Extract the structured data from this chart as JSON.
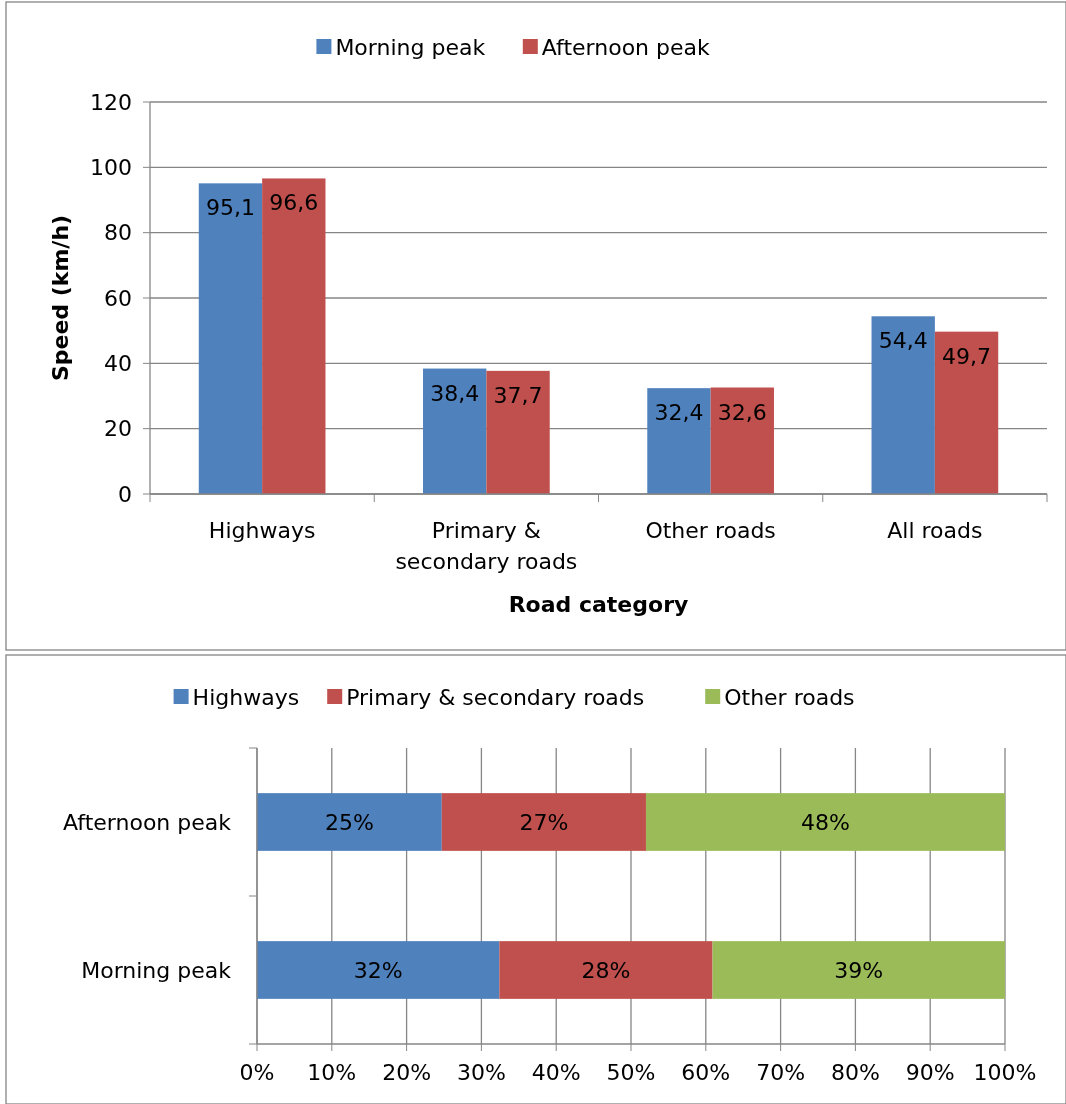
{
  "chart_data": [
    {
      "type": "bar",
      "categories": [
        "Highways",
        "Primary & secondary roads",
        "Other roads",
        "All roads"
      ],
      "series": [
        {
          "name": "Morning peak",
          "color": "#4f81bd",
          "values": [
            95.1,
            38.4,
            32.4,
            54.4
          ],
          "value_labels": [
            "95,1",
            "38,4",
            "32,4",
            "54,4"
          ]
        },
        {
          "name": "Afternoon peak",
          "color": "#c0504d",
          "values": [
            96.6,
            37.7,
            32.6,
            49.7
          ],
          "value_labels": [
            "96,6",
            "37,7",
            "32,6",
            "49,7"
          ]
        }
      ],
      "ylabel": "Speed (km/h)",
      "xlabel": "Road category",
      "ylim": [
        0,
        120
      ],
      "yticks": [
        0,
        20,
        40,
        60,
        80,
        100,
        120
      ],
      "grid": "y",
      "legend": "top"
    },
    {
      "type": "bar",
      "orientation": "horizontal",
      "stacked": true,
      "categories": [
        "Afternoon peak",
        "Morning peak"
      ],
      "series": [
        {
          "name": "Highways",
          "color": "#4f81bd",
          "values": [
            24.7,
            32.4
          ],
          "value_labels": [
            "25%",
            "32%"
          ]
        },
        {
          "name": "Primary & secondary roads",
          "color": "#c0504d",
          "values": [
            27.3,
            28.5
          ],
          "value_labels": [
            "27%",
            "28%"
          ]
        },
        {
          "name": "Other roads",
          "color": "#9bbb59",
          "values": [
            48.0,
            39.1
          ],
          "value_labels": [
            "48%",
            "39%"
          ]
        }
      ],
      "xlim": [
        0,
        100
      ],
      "xticks": [
        {
          "value": 0,
          "label": "0%"
        },
        {
          "value": 10,
          "label": "10%"
        },
        {
          "value": 20,
          "label": "20%"
        },
        {
          "value": 30,
          "label": "30%"
        },
        {
          "value": 40,
          "label": "40%"
        },
        {
          "value": 50,
          "label": "50%"
        },
        {
          "value": 60,
          "label": "60%"
        },
        {
          "value": 70,
          "label": "70%"
        },
        {
          "value": 80,
          "label": "80%"
        },
        {
          "value": 90,
          "label": "90%"
        },
        {
          "value": 100,
          "label": "100%"
        }
      ],
      "grid": "x",
      "legend": "top"
    }
  ]
}
